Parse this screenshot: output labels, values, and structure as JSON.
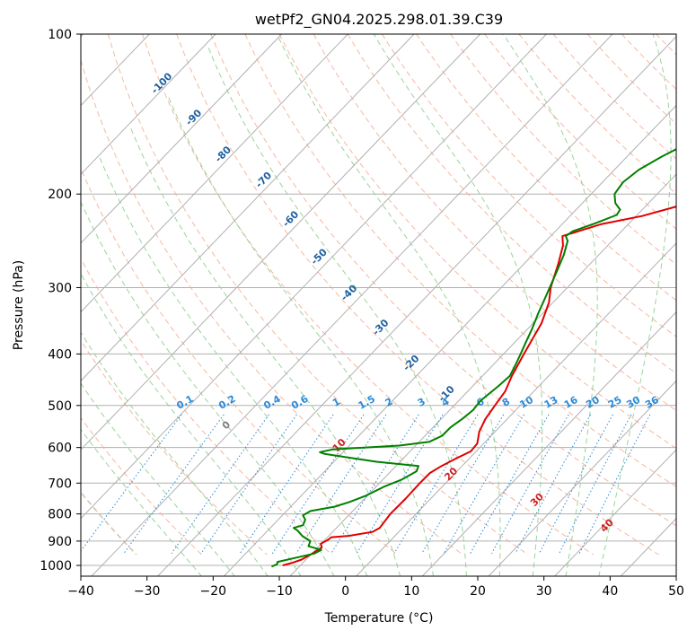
{
  "chart_data": {
    "type": "line",
    "subtype": "skew-t log-p diagram",
    "title": "wetPf2_GN04.2025.298.01.39.C39",
    "xlabel": "Temperature (°C)",
    "ylabel": "Pressure (hPa)",
    "x_ticks": [
      -40,
      -30,
      -20,
      -10,
      0,
      10,
      20,
      30,
      40,
      50
    ],
    "y_ticks": [
      100,
      200,
      300,
      400,
      500,
      600,
      700,
      800,
      900,
      1000
    ],
    "xlim": [
      -40,
      50
    ],
    "ylim": [
      1050,
      100
    ],
    "y_scale": "log",
    "isotherm_labels": [
      "-100",
      "-90",
      "-80",
      "-70",
      "-60",
      "-50",
      "-40",
      "-30",
      "-20",
      "-10"
    ],
    "mixing_ratio_labels": [
      "0.1",
      "0.2",
      "0.4",
      "0.6",
      "1",
      "1.5",
      "2",
      "3",
      "4",
      "6",
      "8",
      "10",
      "13",
      "16",
      "20",
      "25",
      "30",
      "36"
    ],
    "moist_adiabat_labels": [
      "0",
      "10",
      "20",
      "30",
      "40"
    ],
    "colors": {
      "temperature": "#e00000",
      "dewpoint": "#008000",
      "isotherm": "#b0b0b0",
      "isotherm_label": "#1f5f9f",
      "dry_adiabat": "#f4a58a",
      "moist_adiabat": "#8fcf8f",
      "mixing_ratio": "#2a8ad8",
      "moist_label": "#d02020",
      "zero_label": "#808080"
    },
    "series": [
      {
        "points": [
          [
            -9.5,
            1000
          ],
          [
            -8.5,
            990
          ],
          [
            -7.5,
            975
          ],
          [
            -6.8,
            950
          ],
          [
            -6.3,
            925
          ],
          [
            -7.0,
            910
          ],
          [
            -6.5,
            895
          ],
          [
            -6.4,
            885
          ],
          [
            -4,
            880
          ],
          [
            -1.0,
            865
          ],
          [
            -0.5,
            850
          ],
          [
            -1.0,
            800
          ],
          [
            -1.0,
            750
          ],
          [
            -1.2,
            700
          ],
          [
            -1.2,
            670
          ],
          [
            -0.5,
            650
          ],
          [
            0.5,
            630
          ],
          [
            1.7,
            610
          ],
          [
            1.5,
            590
          ],
          [
            0,
            560
          ],
          [
            -1,
            530
          ],
          [
            -1.6,
            500
          ],
          [
            -2.2,
            470
          ],
          [
            -3.5,
            440
          ],
          [
            -5,
            400
          ],
          [
            -7,
            350
          ],
          [
            -9,
            320
          ],
          [
            -11,
            300
          ],
          [
            -13.5,
            270
          ],
          [
            -15.5,
            250
          ],
          [
            -17,
            240
          ],
          [
            -13,
            228
          ],
          [
            -8,
            220
          ],
          [
            -2,
            206
          ],
          [
            3.5,
            196
          ],
          [
            8,
            188
          ],
          [
            12,
            182
          ],
          [
            13.5,
            175
          ],
          [
            16,
            162
          ],
          [
            18.5,
            152
          ],
          [
            18.5,
            144
          ],
          [
            21,
            135
          ],
          [
            24,
            124
          ],
          [
            26,
            115
          ],
          [
            28,
            108
          ],
          [
            30,
            100
          ]
        ]
      },
      {
        "points": [
          [
            -11,
            1005
          ],
          [
            -10.5,
            995
          ],
          [
            -10.8,
            985
          ],
          [
            -9,
            970
          ],
          [
            -6.5,
            950
          ],
          [
            -6,
            935
          ],
          [
            -8.5,
            920
          ],
          [
            -9,
            900
          ],
          [
            -11,
            880
          ],
          [
            -12.5,
            860
          ],
          [
            -13.5,
            850
          ],
          [
            -12.5,
            840
          ],
          [
            -13,
            820
          ],
          [
            -14,
            805
          ],
          [
            -13.5,
            790
          ],
          [
            -10.5,
            775
          ],
          [
            -9,
            760
          ],
          [
            -7.5,
            740
          ],
          [
            -6,
            710
          ],
          [
            -4.5,
            690
          ],
          [
            -3.5,
            665
          ],
          [
            -4,
            650
          ],
          [
            -11,
            638
          ],
          [
            -20,
            617
          ],
          [
            -21,
            612
          ],
          [
            -19.5,
            605
          ],
          [
            -10,
            595
          ],
          [
            -6,
            585
          ],
          [
            -5,
            570
          ],
          [
            -5,
            550
          ],
          [
            -4.5,
            530
          ],
          [
            -4.2,
            510
          ],
          [
            -4.5,
            490
          ],
          [
            -4,
            460
          ],
          [
            -3.8,
            440
          ],
          [
            -4.6,
            420
          ],
          [
            -5.5,
            400
          ],
          [
            -6.5,
            380
          ],
          [
            -7.5,
            360
          ],
          [
            -9,
            335
          ],
          [
            -10.5,
            310
          ],
          [
            -12.5,
            280
          ],
          [
            -14,
            260
          ],
          [
            -15.5,
            245
          ],
          [
            -16.5,
            240
          ],
          [
            -16.2,
            235
          ],
          [
            -14,
            227
          ],
          [
            -12,
            219
          ],
          [
            -12.3,
            214
          ],
          [
            -14,
            208
          ],
          [
            -15.5,
            200
          ],
          [
            -16,
            190
          ],
          [
            -15.5,
            180
          ],
          [
            -14,
            170
          ],
          [
            -12,
            160
          ],
          [
            -10,
            150
          ],
          [
            -6,
            135
          ],
          [
            -2,
            120
          ],
          [
            1.5,
            108
          ],
          [
            4,
            100
          ]
        ]
      }
    ]
  }
}
